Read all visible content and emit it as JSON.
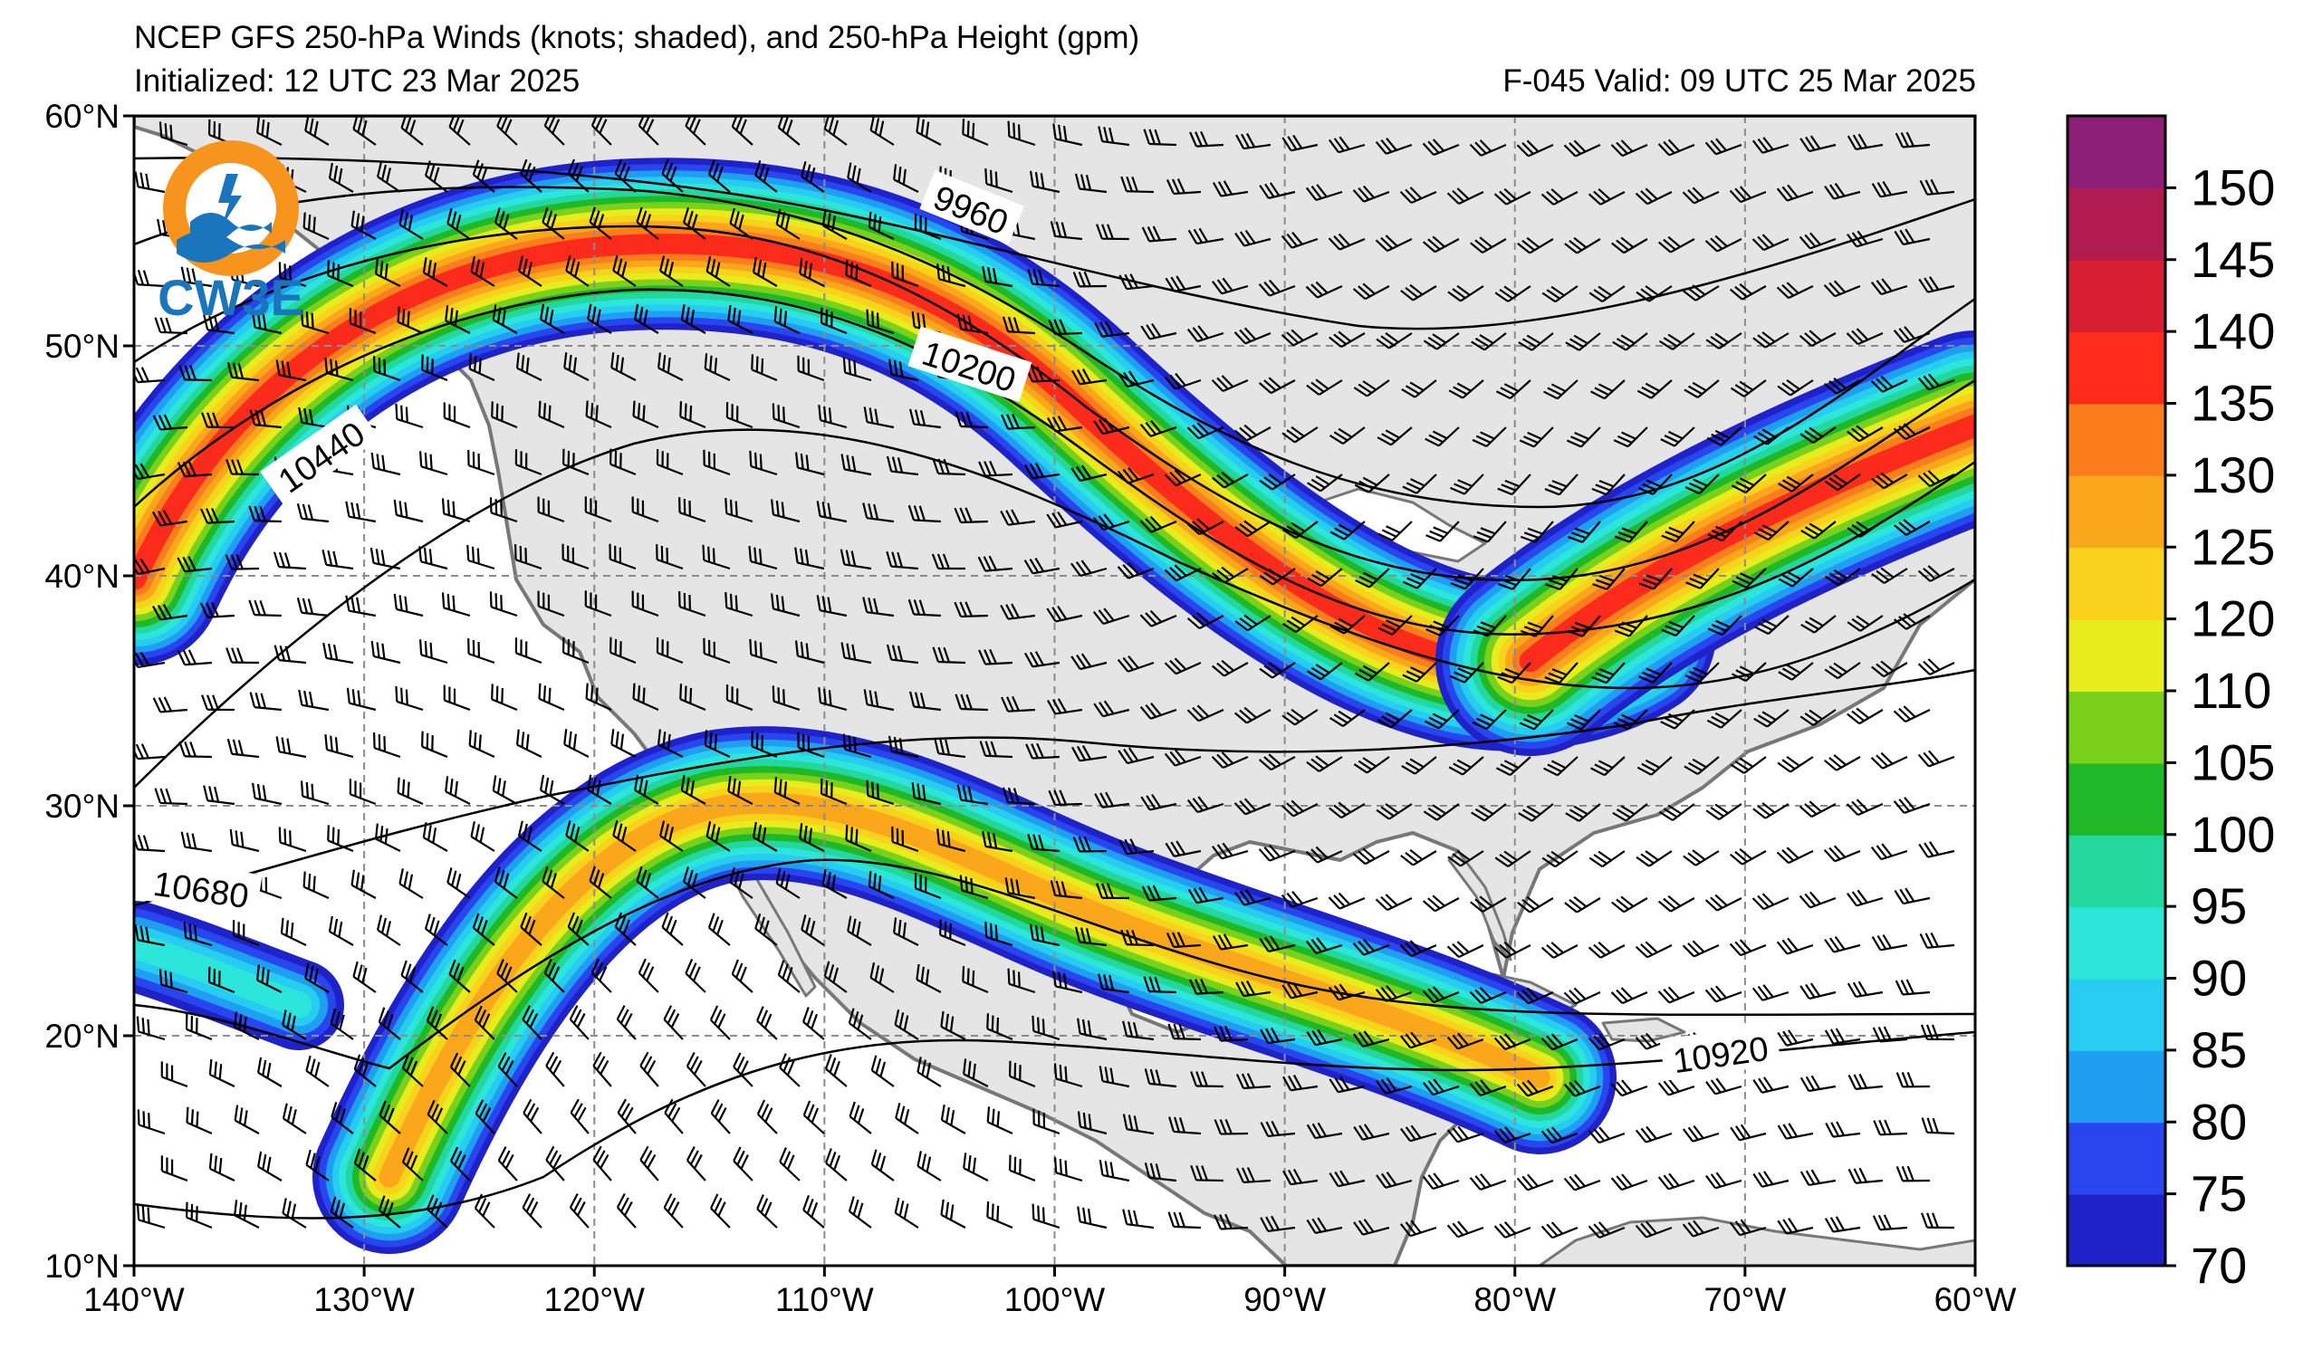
{
  "header": {
    "title": "NCEP GFS 250-hPa Winds (knots; shaded), and 250-hPa Height (gpm)",
    "initialized": "Initialized: 12 UTC 23 Mar 2025",
    "valid": "F-045  Valid: 09 UTC 25 Mar 2025"
  },
  "logo": {
    "text": "CW3E",
    "colors": {
      "orange": "#f7941d",
      "blue": "#1b75bc",
      "teal": "#27aae1"
    }
  },
  "map": {
    "projection": "cylindrical",
    "lon_range": [
      -140,
      -60
    ],
    "lat_range": [
      10,
      60
    ],
    "lon_tick_labels": [
      "140°W",
      "130°W",
      "120°W",
      "110°W",
      "100°W",
      "90°W",
      "80°W",
      "70°W",
      "60°W"
    ],
    "lat_tick_labels": [
      "60°N",
      "50°N",
      "40°N",
      "30°N",
      "20°N",
      "10°N"
    ],
    "gridlines": "dashed",
    "land_color": "#e5e5e5",
    "coast_color": "#777777"
  },
  "contours": {
    "labels": [
      "9960",
      "10200",
      "10440",
      "10680",
      "10920"
    ]
  },
  "colorbar": {
    "levels": [
      70,
      75,
      80,
      85,
      90,
      95,
      100,
      105,
      110,
      120,
      125,
      130,
      135,
      140,
      145,
      150,
      155
    ],
    "tick_labels": [
      "70",
      "75",
      "80",
      "85",
      "90",
      "95",
      "100",
      "105",
      "110",
      "120",
      "125",
      "130",
      "135",
      "140",
      "145",
      "150"
    ],
    "colors": [
      "#1f22c9",
      "#2845f0",
      "#1f9ff2",
      "#26cdf1",
      "#2ce6dc",
      "#23d89f",
      "#1fb826",
      "#79d11c",
      "#e9ec1c",
      "#f8d21b",
      "#fba71b",
      "#fb7e1c",
      "#fc2b1c",
      "#d81e33",
      "#b01c4f",
      "#8e1f78"
    ]
  }
}
